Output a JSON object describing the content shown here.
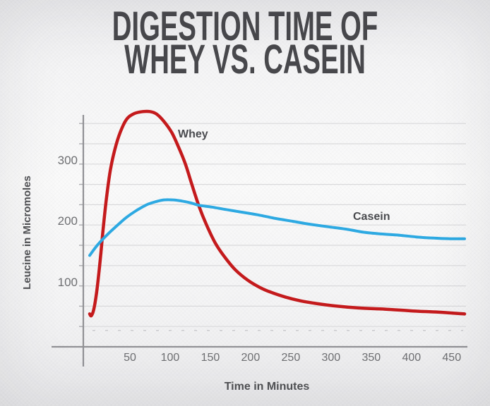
{
  "title": {
    "line1": "DIGESTION TIME OF",
    "line2": "WHEY VS. CASEIN"
  },
  "colors": {
    "whey": "#c41a1c",
    "casein": "#2da9e2",
    "title_text": "#48484c",
    "axis_line": "#919195",
    "gridline": "#d9d9db",
    "tick_text": "#6e6f72"
  },
  "chart_data": {
    "type": "line",
    "title": "Digestion Time of Whey vs. Casein",
    "xlabel": "Time in Minutes",
    "ylabel": "Leucine in Micromoles",
    "x_ticks": [
      50,
      100,
      150,
      200,
      250,
      300,
      350,
      400,
      450
    ],
    "y_ticks": [
      100,
      200,
      300
    ],
    "xlim": [
      0,
      466
    ],
    "ylim": [
      0,
      400
    ],
    "grid": "horizontal-only, 11 evenly spaced lines (every ~33 micromoles)",
    "legend": "inline-labels",
    "series": [
      {
        "name": "Whey",
        "color": "#c41a1c",
        "points": [
          [
            0,
            55
          ],
          [
            2,
            52
          ],
          [
            5,
            62
          ],
          [
            8,
            85
          ],
          [
            11,
            118
          ],
          [
            14,
            158
          ],
          [
            17,
            201
          ],
          [
            21,
            250
          ],
          [
            26,
            298
          ],
          [
            33,
            339
          ],
          [
            40,
            366
          ],
          [
            47,
            383
          ],
          [
            56,
            391
          ],
          [
            66,
            394
          ],
          [
            75,
            394
          ],
          [
            83,
            390
          ],
          [
            92,
            378
          ],
          [
            102,
            359
          ],
          [
            110,
            336
          ],
          [
            119,
            306
          ],
          [
            127,
            272
          ],
          [
            136,
            235
          ],
          [
            145,
            205
          ],
          [
            156,
            174
          ],
          [
            168,
            150
          ],
          [
            181,
            129
          ],
          [
            196,
            112
          ],
          [
            212,
            99
          ],
          [
            226,
            91
          ],
          [
            244,
            83
          ],
          [
            262,
            77
          ],
          [
            284,
            72
          ],
          [
            308,
            68
          ],
          [
            334,
            65
          ],
          [
            367,
            63
          ],
          [
            402,
            60
          ],
          [
            434,
            58
          ],
          [
            466,
            55
          ]
        ]
      },
      {
        "name": "Casein",
        "color": "#2da9e2",
        "points": [
          [
            0,
            153
          ],
          [
            10,
            171
          ],
          [
            22,
            188
          ],
          [
            34,
            203
          ],
          [
            46,
            217
          ],
          [
            59,
            229
          ],
          [
            71,
            238
          ],
          [
            82,
            243
          ],
          [
            92,
            246
          ],
          [
            104,
            246
          ],
          [
            115,
            244
          ],
          [
            126,
            241
          ],
          [
            136,
            237
          ],
          [
            152,
            234
          ],
          [
            169,
            230
          ],
          [
            187,
            226
          ],
          [
            209,
            221
          ],
          [
            231,
            215
          ],
          [
            253,
            210
          ],
          [
            275,
            205
          ],
          [
            297,
            201
          ],
          [
            319,
            197
          ],
          [
            340,
            192
          ],
          [
            362,
            189
          ],
          [
            384,
            187
          ],
          [
            406,
            184
          ],
          [
            428,
            182
          ],
          [
            448,
            181
          ],
          [
            466,
            181
          ]
        ]
      }
    ]
  }
}
